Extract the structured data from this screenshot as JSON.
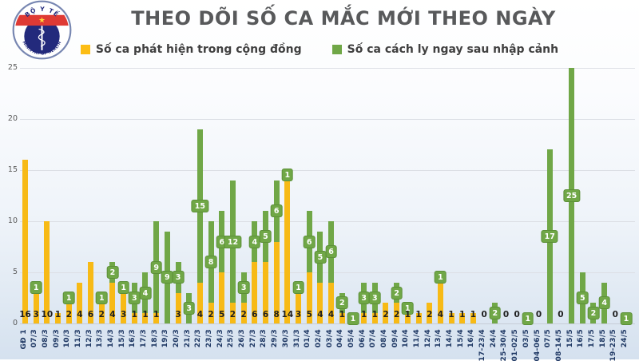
{
  "header": {
    "title": "THEO DÕI SỐ CA MẮC MỚI THEO NGÀY"
  },
  "logo": {
    "top_text": "BỘ Y TẾ",
    "bottom_text": "MINISTRY OF HEALTH"
  },
  "legend": {
    "items": [
      {
        "label": "Số ca phát hiện trong cộng đồng",
        "color": "#fcbd15"
      },
      {
        "label": "Số ca cách ly ngay sau nhập cảnh",
        "color": "#70a747"
      }
    ]
  },
  "chart_data": {
    "type": "bar",
    "stacked": true,
    "title": "THEO DÕI SỐ CA MẮC MỚI THEO NGÀY",
    "categories": [
      "GĐ 1",
      "07/3",
      "08/3",
      "09/3",
      "10/3",
      "11/3",
      "12/3",
      "13/3",
      "14/3",
      "15/3",
      "16/3",
      "17/3",
      "18/3",
      "19/3",
      "20/3",
      "21/3",
      "22/3",
      "23/3",
      "24/3",
      "25/3",
      "26/3",
      "27/3",
      "28/3",
      "29/3",
      "30/3",
      "31/3",
      "01/4",
      "02/4",
      "03/4",
      "04/4",
      "05/4",
      "06/4",
      "07/4",
      "08/4",
      "09/4",
      "10/4",
      "11/4",
      "12/4",
      "13/4",
      "14/4",
      "15/4",
      "16/4",
      "17-23/4",
      "24/4",
      "25-30/4",
      "01-02/5",
      "03/5",
      "04-06/5",
      "07/5",
      "08-14/5",
      "15/5",
      "16/5",
      "17/5",
      "18/5",
      "19-23/5",
      "24/5"
    ],
    "series": [
      {
        "name": "Số ca phát hiện trong cộng đồng",
        "color": "#f7ba16",
        "values": [
          16,
          3,
          10,
          1,
          2,
          4,
          6,
          2,
          4,
          3,
          1,
          1,
          1,
          0,
          3,
          0,
          4,
          2,
          5,
          2,
          2,
          6,
          6,
          8,
          14,
          3,
          5,
          4,
          4,
          1,
          0,
          1,
          1,
          2,
          2,
          1,
          1,
          2,
          4,
          1,
          1,
          1,
          0,
          0,
          0,
          0,
          0,
          0,
          0,
          0,
          0,
          0,
          0,
          0,
          0,
          0
        ]
      },
      {
        "name": "Số ca cách ly ngay sau nhập cảnh",
        "color": "#70a747",
        "values": [
          0,
          1,
          0,
          0,
          1,
          0,
          0,
          1,
          2,
          1,
          3,
          4,
          9,
          9,
          3,
          3,
          15,
          8,
          6,
          12,
          3,
          4,
          5,
          6,
          1,
          1,
          6,
          5,
          6,
          2,
          1,
          3,
          3,
          0,
          2,
          1,
          0,
          0,
          1,
          0,
          0,
          0,
          0,
          2,
          0,
          0,
          1,
          0,
          17,
          0,
          25,
          5,
          2,
          4,
          0,
          1
        ]
      }
    ],
    "ylim": [
      0,
      25
    ],
    "yticks": [
      0,
      5,
      10,
      15,
      20,
      25
    ],
    "grid": true,
    "legend_position": "top",
    "value_label_style": {
      "community": "black number at bar base",
      "quarantine": "white number in green badge centered on green segment",
      "zero_weeks": "0 shown at base when no cases"
    }
  }
}
